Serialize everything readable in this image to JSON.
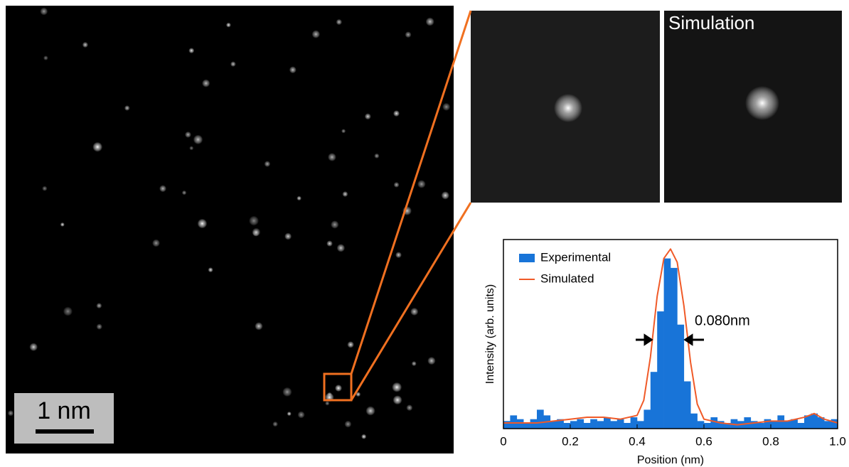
{
  "scale_bar": "1 nm",
  "panel_label": "Simulation",
  "chart_data": {
    "type": "histogram",
    "x_label": "Position (nm)",
    "y_label": "Intensity (arb. units)",
    "annotation": "0.080nm",
    "legend": "upper left",
    "xlim": [
      0,
      1
    ],
    "ylim": [
      0,
      1
    ],
    "xticks": [
      0,
      0.2,
      0.4,
      0.6,
      0.8,
      {
        "value": 1,
        "label": "1.0"
      }
    ],
    "bins": [
      0,
      0.02,
      0.04,
      0.06,
      0.08,
      0.1,
      0.12,
      0.14,
      0.16,
      0.18,
      0.2,
      0.22,
      0.24,
      0.26,
      0.28,
      0.3,
      0.32,
      0.34,
      0.36,
      0.38,
      0.4,
      0.42,
      0.44,
      0.46,
      0.48,
      0.5,
      0.52,
      0.54,
      0.56,
      0.58,
      0.6,
      0.62,
      0.64,
      0.66,
      0.68,
      0.7,
      0.72,
      0.74,
      0.76,
      0.78,
      0.8,
      0.82,
      0.84,
      0.86,
      0.88,
      0.9,
      0.92,
      0.94,
      0.96,
      0.98,
      1
    ],
    "series": [
      {
        "name": "Experimental",
        "type": "histogram",
        "color": "#1874d8",
        "values": [
          0.04,
          0.07,
          0.05,
          0.03,
          0.05,
          0.1,
          0.07,
          0.04,
          0.05,
          0.03,
          0.04,
          0.05,
          0.03,
          0.05,
          0.04,
          0.06,
          0.04,
          0.05,
          0.03,
          0.06,
          0.04,
          0.1,
          0.3,
          0.62,
          0.9,
          0.85,
          0.55,
          0.25,
          0.08,
          0.04,
          0.03,
          0.06,
          0.04,
          0.03,
          0.05,
          0.04,
          0.06,
          0.04,
          0.03,
          0.05,
          0.04,
          0.07,
          0.04,
          0.05,
          0.03,
          0.07,
          0.08,
          0.06,
          0.04,
          0.05
        ]
      },
      {
        "name": "Simulated",
        "type": "line",
        "color": "#f05a28",
        "x": [
          0,
          0.05,
          0.1,
          0.15,
          0.2,
          0.25,
          0.3,
          0.35,
          0.4,
          0.42,
          0.44,
          0.46,
          0.48,
          0.5,
          0.52,
          0.54,
          0.56,
          0.58,
          0.6,
          0.65,
          0.7,
          0.75,
          0.8,
          0.85,
          0.9,
          0.93,
          0.96,
          1
        ],
        "values": [
          0.03,
          0.03,
          0.03,
          0.04,
          0.05,
          0.06,
          0.06,
          0.05,
          0.07,
          0.15,
          0.38,
          0.7,
          0.9,
          0.95,
          0.88,
          0.65,
          0.35,
          0.13,
          0.05,
          0.03,
          0.02,
          0.03,
          0.04,
          0.04,
          0.06,
          0.08,
          0.05,
          0.03
        ]
      }
    ]
  }
}
